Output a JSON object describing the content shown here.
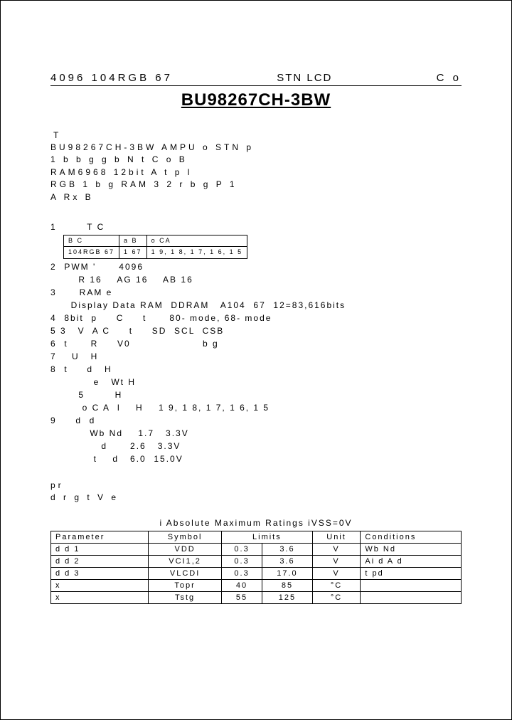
{
  "header": {
    "left": "4096   104RGB   67",
    "mid": "STN LCD",
    "right": "C o"
  },
  "part_title": "BU98267CH-3BW",
  "section_t": "T",
  "desc_lines": [
    "BU98267CH-3BW    AMPU o            STN   p",
    "1   b    b g    g  b N t          C o    B",
    "         RAM6968  12bit      A      t   p l",
    "RGB  1       b g    RAM  3 2  r  b g   P  1",
    "     A  Rx                    B"
  ],
  "mini_table": {
    "r1": [
      "B    C",
      "a B",
      "o CA"
    ],
    "r2": [
      "104RGB  67",
      "1 67",
      "1 9, 1 8, 1 7, 1 6, 1 5"
    ]
  },
  "features": [
    "1        T C",
    "2  PWM '      4096",
    "    R 16    AG 16    AB 16",
    "3      RAM e",
    "  Display Data RAM  DDRAM   A104  67  12=83,616bits",
    "4  8bit  p     C     t      80- mode, 68- mode",
    "5 3   V  A C     t     SD  SCL  CSB",
    "6  t      R     V0                   b g",
    "7    U   H",
    "8  t     d   H",
    "        e   Wt H",
    "    5        H",
    "     o C A  l    H    1 9, 1 8, 1 7, 1 6, 1 5",
    "9     d  d",
    "       Wb Nd    1.7   3.3V",
    "          d      2.6   3.3V",
    "        t    d   6.0  15.0V"
  ],
  "pr_lines": [
    " pr",
    "d r      g       t      V   e"
  ],
  "ratings_title": "i  Absolute Maximum Ratings  iVSS=0V",
  "ratings_headers": [
    "Parameter",
    "Symbol",
    "Limits",
    "",
    "Unit",
    "Conditions"
  ],
  "ratings_rows": [
    {
      "param": "d   d  1",
      "symbol": "VDD",
      "lo": "0.3",
      "hi": "3.6",
      "unit": "V",
      "cond": "Wb Nd"
    },
    {
      "param": "d   d  2",
      "symbol": "VCI1,2",
      "lo": "0.3",
      "hi": "3.6",
      "unit": "V",
      "cond": "Ai   d   A   d"
    },
    {
      "param": "d   d  3",
      "symbol": "VLCDI",
      "lo": "0.3",
      "hi": "17.0",
      "unit": "V",
      "cond": "t       pd"
    },
    {
      "param": "    x",
      "symbol": "Topr",
      "lo": "40",
      "hi": "85",
      "unit": "°C",
      "cond": ""
    },
    {
      "param": "    x",
      "symbol": "Tstg",
      "lo": "55",
      "hi": "125",
      "unit": "°C",
      "cond": ""
    }
  ]
}
